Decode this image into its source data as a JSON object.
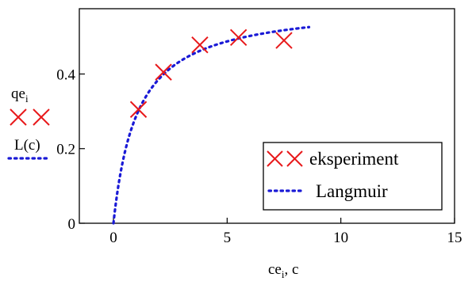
{
  "chart_data": {
    "type": "scatter",
    "xlim": [
      -1.5,
      15
    ],
    "ylim": [
      0,
      0.575
    ],
    "x_ticks": [
      0,
      5,
      10,
      15
    ],
    "x_tick_labels": [
      "0",
      "5",
      "10",
      "15"
    ],
    "y_ticks": [
      0,
      0.2,
      0.4
    ],
    "y_tick_labels": [
      "0",
      "0.2",
      "0.4"
    ],
    "xlabel": {
      "main": "ce",
      "sub": "i",
      "rest": ", c"
    },
    "ylabel_series1": {
      "main": "qe",
      "sub": "i"
    },
    "ylabel_series2": "L(c)",
    "grid": false,
    "legend_position": "bottom-right",
    "series": [
      {
        "name": "eksperiment",
        "style": "markers",
        "marker": "x-cross",
        "color": "#e8191b",
        "x": [
          1.1,
          2.2,
          3.8,
          5.5,
          7.5
        ],
        "y": [
          0.305,
          0.405,
          0.478,
          0.498,
          0.49
        ]
      },
      {
        "name": "Langmuir",
        "style": "dotted-line",
        "color": "#1a1ad6",
        "model": {
          "qmax": 0.59,
          "K": 0.95
        },
        "x_range": [
          0,
          8.6
        ]
      }
    ]
  }
}
